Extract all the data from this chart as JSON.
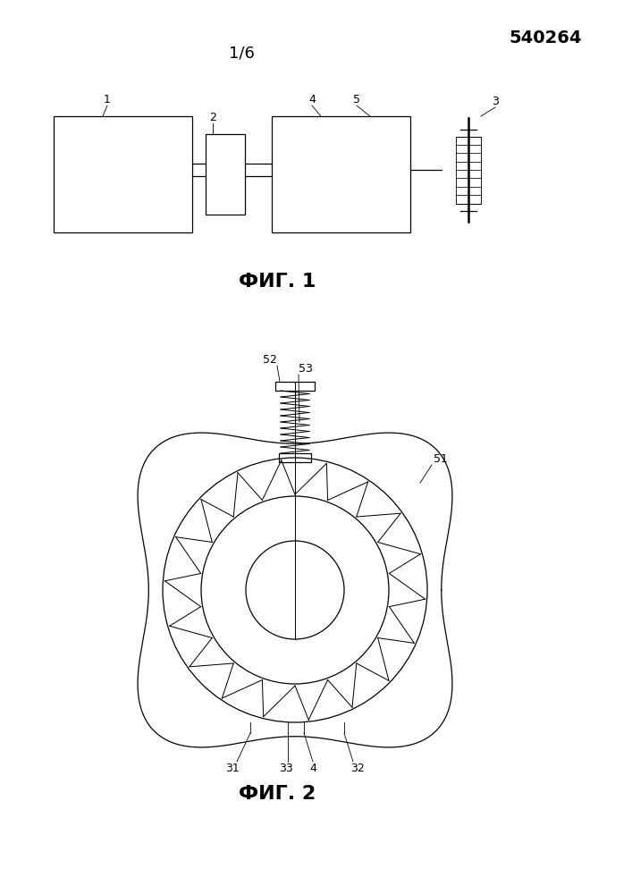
{
  "patent_number": "540264",
  "page_label": "1/6",
  "fig1_label": "ФИГ. 1",
  "fig2_label": "ФИГ. 2",
  "line_color": "#000000",
  "bg_color": "#ffffff",
  "lw": 0.9
}
